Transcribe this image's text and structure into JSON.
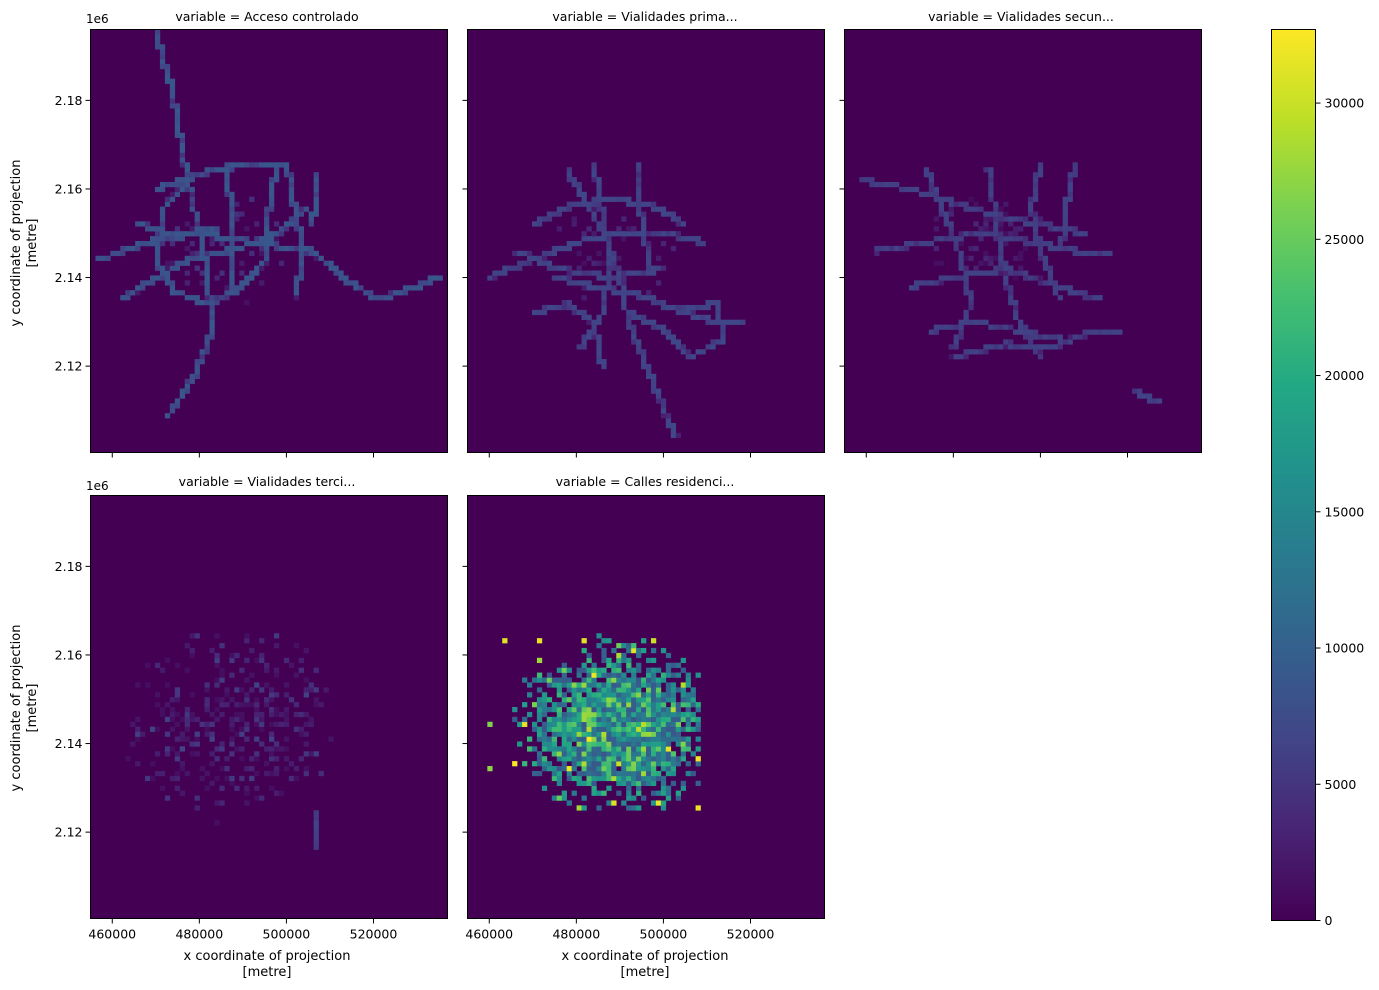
{
  "figure": {
    "colormap": "viridis",
    "background": "#ffffff",
    "offset_label": "1e6"
  },
  "chart_data": {
    "type": "heatmap",
    "xlabel": "x coordinate of projection",
    "xlabel_unit": "[metre]",
    "ylabel": "y coordinate of projection",
    "ylabel_unit": "[metre]",
    "xlim": [
      455000,
      537000
    ],
    "ylim": [
      2100500,
      2196000
    ],
    "x_ticks": [
      460000,
      480000,
      500000,
      520000
    ],
    "x_tick_labels": [
      "460000",
      "480000",
      "500000",
      "520000"
    ],
    "y_ticks": [
      2120000,
      2140000,
      2160000,
      2180000
    ],
    "y_tick_labels": [
      "2.12",
      "2.14",
      "2.16",
      "2.18"
    ],
    "colorbar": {
      "min": 0,
      "max": 32700,
      "ticks": [
        0,
        5000,
        10000,
        15000,
        20000,
        25000,
        30000
      ],
      "tick_labels": [
        "0",
        "5000",
        "10000",
        "15000",
        "20000",
        "25000",
        "30000"
      ]
    },
    "panels": [
      {
        "title": "variable = Acceso controlado",
        "pattern": "network",
        "density": 0.55,
        "level_range": [
          2000,
          9000
        ],
        "center": [
          485000,
          2146000
        ],
        "spread": [
          18000,
          13000
        ],
        "roads": [
          [
            [
              470000,
              2195000
            ],
            [
              473000,
              2185000
            ],
            [
              475000,
              2176000
            ],
            [
              476000,
              2168000
            ]
          ],
          [
            [
              457000,
              2144000
            ],
            [
              468000,
              2148000
            ],
            [
              480000,
              2150000
            ],
            [
              492000,
              2148000
            ],
            [
              506000,
              2146000
            ],
            [
              513000,
              2140000
            ],
            [
              521000,
              2135000
            ],
            [
              530000,
              2138000
            ],
            [
              535000,
              2140000
            ]
          ],
          [
            [
              476000,
              2168000
            ],
            [
              480000,
              2150000
            ],
            [
              482000,
              2140000
            ],
            [
              483000,
              2128000
            ],
            [
              479000,
              2118000
            ],
            [
              473000,
              2109000
            ]
          ],
          [
            [
              462000,
              2135000
            ],
            [
              470000,
              2140000
            ],
            [
              478000,
              2144000
            ],
            [
              490000,
              2147000
            ],
            [
              498000,
              2150000
            ],
            [
              505000,
              2156000
            ]
          ],
          [
            [
              470000,
              2160000
            ],
            [
              482000,
              2164000
            ],
            [
              494000,
              2166000
            ],
            [
              500000,
              2166000
            ]
          ],
          [
            [
              498000,
              2166000
            ],
            [
              496000,
              2156000
            ],
            [
              495000,
              2144000
            ],
            [
              490000,
              2138000
            ],
            [
              482000,
              2134000
            ],
            [
              474000,
              2137000
            ],
            [
              470000,
              2144000
            ],
            [
              472000,
              2156000
            ],
            [
              478000,
              2162000
            ]
          ],
          [
            [
              500000,
              2166000
            ],
            [
              502000,
              2155000
            ],
            [
              504000,
              2145000
            ],
            [
              502000,
              2136000
            ]
          ],
          [
            [
              486000,
              2166000
            ],
            [
              488000,
              2150000
            ],
            [
              487000,
              2138000
            ]
          ],
          [
            [
              466000,
              2152000
            ],
            [
              474000,
              2150000
            ],
            [
              484000,
              2151000
            ]
          ],
          [
            [
              507000,
              2163000
            ],
            [
              506000,
              2152000
            ]
          ]
        ]
      },
      {
        "title": "variable = Vialidades prima...",
        "pattern": "network",
        "density": 0.55,
        "level_range": [
          2000,
          7000
        ],
        "center": [
          488000,
          2145000
        ],
        "spread": [
          15000,
          12000
        ],
        "roads": [
          [
            [
              478000,
              2164000
            ],
            [
              483000,
              2156000
            ],
            [
              487000,
              2148000
            ],
            [
              490000,
              2140000
            ],
            [
              492000,
              2130000
            ],
            [
              496000,
              2120000
            ],
            [
              501000,
              2108000
            ],
            [
              503000,
              2104000
            ]
          ],
          [
            [
              460000,
              2140000
            ],
            [
              470000,
              2144000
            ],
            [
              480000,
              2148000
            ],
            [
              490000,
              2150000
            ],
            [
              500000,
              2150000
            ],
            [
              509000,
              2148000
            ]
          ],
          [
            [
              484000,
              2166000
            ],
            [
              486000,
              2154000
            ],
            [
              488000,
              2144000
            ],
            [
              486000,
              2132000
            ],
            [
              481000,
              2124000
            ]
          ],
          [
            [
              470000,
              2152000
            ],
            [
              478000,
              2156000
            ],
            [
              488000,
              2158000
            ],
            [
              498000,
              2156000
            ],
            [
              505000,
              2152000
            ]
          ],
          [
            [
              475000,
              2140000
            ],
            [
              484000,
              2138000
            ],
            [
              495000,
              2136000
            ],
            [
              505000,
              2132000
            ],
            [
              512000,
              2130000
            ],
            [
              518000,
              2130000
            ]
          ],
          [
            [
              466000,
              2146000
            ],
            [
              476000,
              2142000
            ],
            [
              488000,
              2140000
            ],
            [
              500000,
              2142000
            ]
          ],
          [
            [
              470000,
              2132000
            ],
            [
              478000,
              2134000
            ],
            [
              484000,
              2130000
            ],
            [
              486000,
              2120000
            ]
          ],
          [
            [
              492000,
              2132000
            ],
            [
              500000,
              2128000
            ],
            [
              506000,
              2122000
            ],
            [
              514000,
              2126000
            ],
            [
              512000,
              2134000
            ],
            [
              503000,
              2133000
            ]
          ],
          [
            [
              494000,
              2166000
            ],
            [
              495000,
              2152000
            ],
            [
              497000,
              2142000
            ]
          ]
        ]
      },
      {
        "title": "variable = Vialidades secun...",
        "pattern": "network",
        "density": 0.75,
        "level_range": [
          1500,
          6500
        ],
        "center": [
          488000,
          2148000
        ],
        "spread": [
          15000,
          12000
        ],
        "roads": [
          [
            [
              459000,
              2162000
            ],
            [
              470000,
              2160000
            ],
            [
              480000,
              2157000
            ],
            [
              490000,
              2154000
            ],
            [
              500000,
              2152000
            ],
            [
              510000,
              2150000
            ]
          ],
          [
            [
              462000,
              2146000
            ],
            [
              474000,
              2148000
            ],
            [
              486000,
              2150000
            ],
            [
              498000,
              2148000
            ],
            [
              508000,
              2146000
            ],
            [
              516000,
              2146000
            ]
          ],
          [
            [
              470000,
              2138000
            ],
            [
              480000,
              2140000
            ],
            [
              492000,
              2142000
            ],
            [
              504000,
              2138000
            ],
            [
              514000,
              2135000
            ]
          ],
          [
            [
              475000,
              2128000
            ],
            [
              485000,
              2130000
            ],
            [
              495000,
              2128000
            ],
            [
              505000,
              2126000
            ]
          ],
          [
            [
              474000,
              2164000
            ],
            [
              478000,
              2154000
            ],
            [
              482000,
              2144000
            ],
            [
              484000,
              2134000
            ],
            [
              480000,
              2124000
            ]
          ],
          [
            [
              488000,
              2164000
            ],
            [
              490000,
              2152000
            ],
            [
              492000,
              2140000
            ],
            [
              495000,
              2130000
            ],
            [
              500000,
              2122000
            ]
          ],
          [
            [
              500000,
              2166000
            ],
            [
              498000,
              2156000
            ],
            [
              500000,
              2146000
            ],
            [
              504000,
              2136000
            ]
          ],
          [
            [
              508000,
              2166000
            ],
            [
              506000,
              2156000
            ],
            [
              505000,
              2148000
            ]
          ],
          [
            [
              480000,
              2122000
            ],
            [
              492000,
              2125000
            ],
            [
              502000,
              2124000
            ],
            [
              512000,
              2128000
            ],
            [
              518000,
              2128000
            ]
          ],
          [
            [
              522000,
              2114000
            ],
            [
              527000,
              2112000
            ]
          ]
        ]
      },
      {
        "title": "variable = Vialidades terci...",
        "pattern": "scatter",
        "density": 0.32,
        "level_range": [
          1200,
          6500
        ],
        "center": [
          487000,
          2145000
        ],
        "spread": [
          17000,
          16000
        ],
        "bounds": [
          463000,
          2118000,
          511000,
          2167000
        ],
        "roads": [
          [
            [
              507000,
              2124000
            ],
            [
              507000,
              2117000
            ]
          ]
        ]
      },
      {
        "title": "variable = Calles residenci...",
        "pattern": "blob",
        "density": 0.93,
        "level_range": [
          9000,
          30000
        ],
        "center": [
          490000,
          2144000
        ],
        "spread": [
          17000,
          14000
        ],
        "bounds": [
          459000,
          2125000,
          509000,
          2167000
        ],
        "roads": []
      }
    ]
  }
}
